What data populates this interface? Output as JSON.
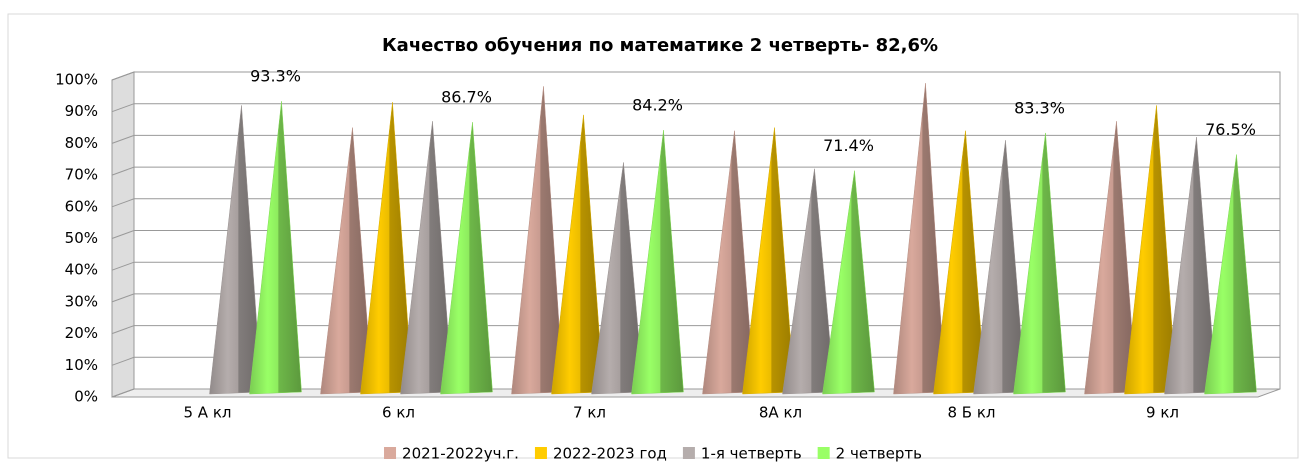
{
  "chart_data": {
    "type": "cone",
    "title": "Качество обучения по математике 2 четверть- 82,6%",
    "categories": [
      "5 А кл",
      "6 кл",
      "7 кл",
      "8А кл",
      "8 Б кл",
      "9 кл"
    ],
    "series": [
      {
        "name": "2021-2022уч.г.",
        "color": "#d9a99c",
        "values": [
          null,
          85,
          98,
          84,
          99,
          87
        ]
      },
      {
        "name": "2022-2023 год",
        "color": "#ffcc00",
        "values": [
          null,
          93,
          89,
          85,
          84,
          92
        ]
      },
      {
        "name": "1-я четверть",
        "color": "#b5adac",
        "values": [
          92,
          87,
          74,
          72,
          81,
          82
        ]
      },
      {
        "name": "2 четверть",
        "color": "#99ff66",
        "values": [
          93.3,
          86.7,
          84.2,
          71.4,
          83.3,
          76.5
        ],
        "value_labels": [
          "93.3%",
          "86.7%",
          "84.2%",
          "71.4%",
          "83.3%",
          "76.5%"
        ]
      }
    ],
    "ylim": [
      0,
      100
    ],
    "yticks": [
      {
        "value": 0,
        "label": "0%"
      },
      {
        "value": 10,
        "label": "10%"
      },
      {
        "value": 20,
        "label": "20%"
      },
      {
        "value": 30,
        "label": "30%"
      },
      {
        "value": 40,
        "label": "40%"
      },
      {
        "value": 50,
        "label": "50%"
      },
      {
        "value": 60,
        "label": "60%"
      },
      {
        "value": 70,
        "label": "70%"
      },
      {
        "value": 80,
        "label": "80%"
      },
      {
        "value": 90,
        "label": "90%"
      },
      {
        "value": 100,
        "label": "100%"
      }
    ],
    "grid": true,
    "legend": "bottom"
  }
}
